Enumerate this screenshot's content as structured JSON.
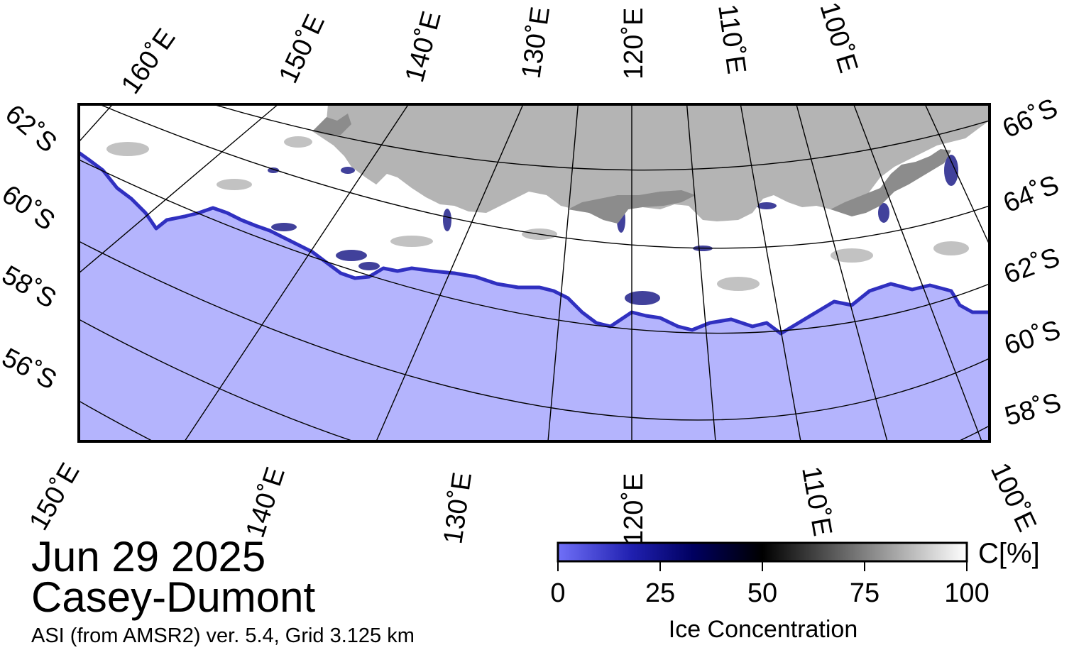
{
  "map": {
    "top_lon_labels": [
      "160˚E",
      "150˚E",
      "140˚E",
      "130˚E",
      "120˚E",
      "110˚E",
      "100˚E"
    ],
    "bottom_lon_labels": [
      "150˚E",
      "140˚E",
      "130˚E",
      "120˚E",
      "110˚E",
      "100˚E"
    ],
    "left_lat_labels": [
      "62˚S",
      "60˚S",
      "58˚S",
      "56˚S"
    ],
    "right_lat_labels": [
      "66˚S",
      "64˚S",
      "62˚S",
      "60˚S",
      "58˚S"
    ],
    "colors": {
      "ocean": "#b4b4fd",
      "land": "#b4b4b4",
      "land_dark": "#8c8c8c",
      "ice": "#ffffff",
      "ice_edge": "#3030c0",
      "grid": "#000000"
    }
  },
  "title": {
    "date": "Jun 29 2025",
    "region": "Casey-Dumont",
    "subtitle": "ASI (from AMSR2) ver. 5.4,  Grid 3.125 km"
  },
  "colorbar": {
    "ticks": [
      "0",
      "25",
      "50",
      "75",
      "100"
    ],
    "unit": "C[%]",
    "title": "Ice Concentration"
  }
}
